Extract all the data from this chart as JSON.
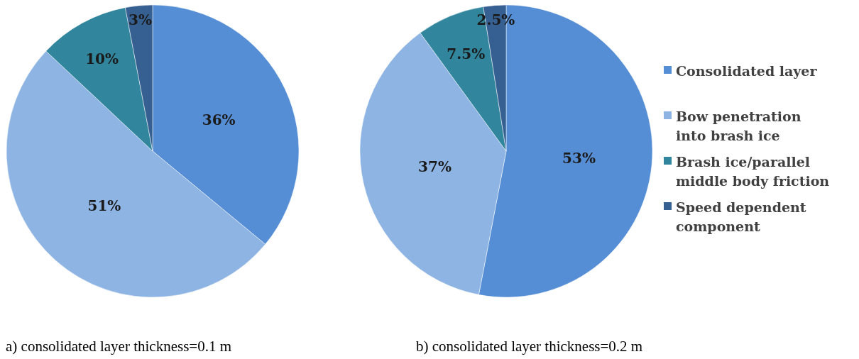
{
  "chart_data": [
    {
      "type": "pie",
      "categories": [
        null,
        null,
        null,
        null
      ],
      "values": [
        36,
        51,
        10,
        3
      ],
      "value_labels": [
        "36%",
        "51%",
        "10%",
        "3%"
      ],
      "colors": [
        "#558ed5",
        "#8eb4e3",
        "#31859c",
        "#376092"
      ],
      "annotations": [
        "a)  consolidated layer thickness=0.1 m"
      ]
    },
    {
      "type": "pie",
      "categories": [
        "Consolidated layer",
        "Bow penetration into brash ice",
        "Brash ice/parallel middle body friction",
        "Speed dependent component"
      ],
      "values": [
        53,
        37,
        7.5,
        2.5
      ],
      "value_labels": [
        "53%",
        "37%",
        "7.5%",
        "2.5%"
      ],
      "colors": [
        "#558ed5",
        "#8eb4e3",
        "#31859c",
        "#376092"
      ],
      "legend": "right",
      "annotations": [
        "b)  consolidated layer thickness=0.2 m"
      ]
    }
  ]
}
